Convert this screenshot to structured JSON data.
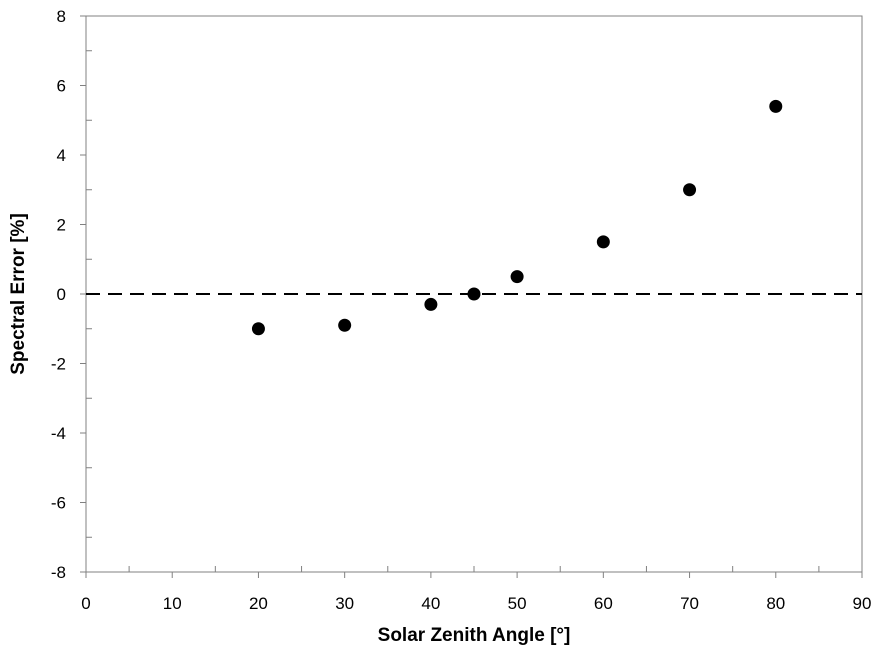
{
  "chart_data": {
    "type": "scatter",
    "title": "",
    "xlabel": "Solar Zenith Angle [°]",
    "ylabel": "Spectral Error [%]",
    "xlim": [
      0,
      90
    ],
    "ylim": [
      -8,
      8
    ],
    "x_major_ticks": [
      0,
      10,
      20,
      30,
      40,
      50,
      60,
      70,
      80,
      90
    ],
    "x_minor_ticks": [
      5,
      15,
      25,
      35,
      45,
      55,
      65,
      75,
      85
    ],
    "y_major_ticks": [
      -8,
      -6,
      -4,
      -2,
      0,
      2,
      4,
      6,
      8
    ],
    "y_minor_ticks": [
      -7,
      -5,
      -3,
      -1,
      1,
      3,
      5,
      7
    ],
    "grid": false,
    "reference_line": {
      "y": 0,
      "style": "dashed"
    },
    "series": [
      {
        "name": "Spectral Error",
        "marker": "circle",
        "color": "#000000",
        "x": [
          20,
          30,
          40,
          45,
          50,
          60,
          70,
          80
        ],
        "y": [
          -1.0,
          -0.9,
          -0.3,
          0.0,
          0.5,
          1.5,
          3.0,
          5.4
        ]
      }
    ]
  }
}
